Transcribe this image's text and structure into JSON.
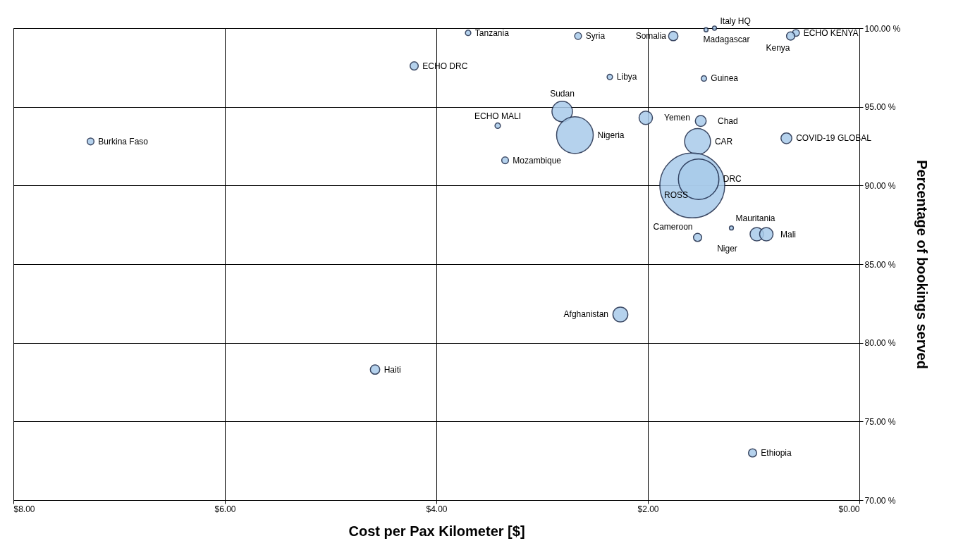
{
  "chart_data": {
    "type": "bubble",
    "xlabel": "Cost per Pax Kilometer [$]",
    "ylabel": "Percentage of bookings served",
    "xlim": [
      8,
      0
    ],
    "xticks": [
      {
        "value": 8,
        "label": "$8.00"
      },
      {
        "value": 6,
        "label": "$6.00"
      },
      {
        "value": 4,
        "label": "$4.00"
      },
      {
        "value": 2,
        "label": "$2.00"
      },
      {
        "value": 0,
        "label": "$0.00"
      }
    ],
    "ylim": [
      70,
      100
    ],
    "yticks": [
      {
        "value": 70,
        "label": "70.00 %"
      },
      {
        "value": 75,
        "label": "75.00 %"
      },
      {
        "value": 80,
        "label": "80.00 %"
      },
      {
        "value": 85,
        "label": "85.00 %"
      },
      {
        "value": 90,
        "label": "90.00 %"
      },
      {
        "value": 95,
        "label": "95.00 %"
      },
      {
        "value": 100,
        "label": "100.00 %"
      }
    ],
    "grid": true,
    "color": "#a9cbea",
    "x": [
      3.7,
      2.66,
      1.76,
      1.37,
      1.45,
      0.6,
      0.65,
      4.21,
      2.36,
      1.47,
      2.81,
      3.42,
      2.69,
      2.02,
      1.5,
      1.53,
      0.69,
      7.27,
      3.35,
      1.58,
      1.52,
      1.21,
      1.53,
      0.97,
      0.88,
      2.26,
      4.58,
      1.01
    ],
    "values": [
      99.7,
      99.5,
      99.5,
      100.0,
      99.9,
      99.7,
      99.5,
      97.6,
      96.9,
      96.8,
      94.7,
      93.8,
      93.2,
      94.3,
      94.1,
      92.8,
      93.0,
      92.8,
      91.6,
      90.0,
      90.4,
      87.3,
      86.7,
      86.9,
      86.9,
      81.8,
      78.3,
      73.0
    ],
    "sizes": [
      0.007,
      0.011,
      0.021,
      0.004,
      0.004,
      0.011,
      0.016,
      0.016,
      0.007,
      0.007,
      0.1,
      0.007,
      0.32,
      0.043,
      0.028,
      0.16,
      0.028,
      0.011,
      0.011,
      1,
      0.39,
      0.004,
      0.016,
      0.043,
      0.043,
      0.053,
      0.021,
      0.016
    ],
    "annotations": [
      {
        "text": "Tanzania",
        "x": 3.7,
        "y": 99.7
      },
      {
        "text": "Syria",
        "x": 2.66,
        "y": 99.5
      },
      {
        "text": "Somalia",
        "x": 1.76,
        "y": 99.5
      },
      {
        "text": "Italy HQ",
        "x": 1.37,
        "y": 100.0
      },
      {
        "text": "Madagascar",
        "x": 1.45,
        "y": 99.9
      },
      {
        "text": "ECHO KENYA",
        "x": 0.6,
        "y": 99.7
      },
      {
        "text": "Kenya",
        "x": 0.65,
        "y": 99.5
      },
      {
        "text": "ECHO DRC",
        "x": 4.21,
        "y": 97.6
      },
      {
        "text": "Libya",
        "x": 2.36,
        "y": 96.9
      },
      {
        "text": "Guinea",
        "x": 1.47,
        "y": 96.8
      },
      {
        "text": "Sudan",
        "x": 2.81,
        "y": 94.7
      },
      {
        "text": "ECHO MALI",
        "x": 3.42,
        "y": 93.8
      },
      {
        "text": "Nigeria",
        "x": 2.69,
        "y": 93.2
      },
      {
        "text": "Yemen",
        "x": 2.02,
        "y": 94.3
      },
      {
        "text": "Chad",
        "x": 1.5,
        "y": 94.1
      },
      {
        "text": "CAR",
        "x": 1.53,
        "y": 92.8
      },
      {
        "text": "COVID-19 GLOBAL",
        "x": 0.69,
        "y": 93.0
      },
      {
        "text": "Burkina Faso",
        "x": 7.27,
        "y": 92.8
      },
      {
        "text": "Mozambique",
        "x": 3.35,
        "y": 91.6
      },
      {
        "text": "ROSS",
        "x": 1.58,
        "y": 90.0
      },
      {
        "text": "DRC",
        "x": 1.52,
        "y": 90.4
      },
      {
        "text": "Mauritania",
        "x": 1.21,
        "y": 87.3
      },
      {
        "text": "Cameroon",
        "x": 1.53,
        "y": 86.7
      },
      {
        "text": "Niger",
        "x": 0.97,
        "y": 86.9
      },
      {
        "text": "Mali",
        "x": 0.88,
        "y": 86.9
      },
      {
        "text": "Afghanistan",
        "x": 2.26,
        "y": 81.8
      },
      {
        "text": "Haiti",
        "x": 4.58,
        "y": 78.3
      },
      {
        "text": "Ethiopia",
        "x": 1.01,
        "y": 73.0
      }
    ]
  }
}
